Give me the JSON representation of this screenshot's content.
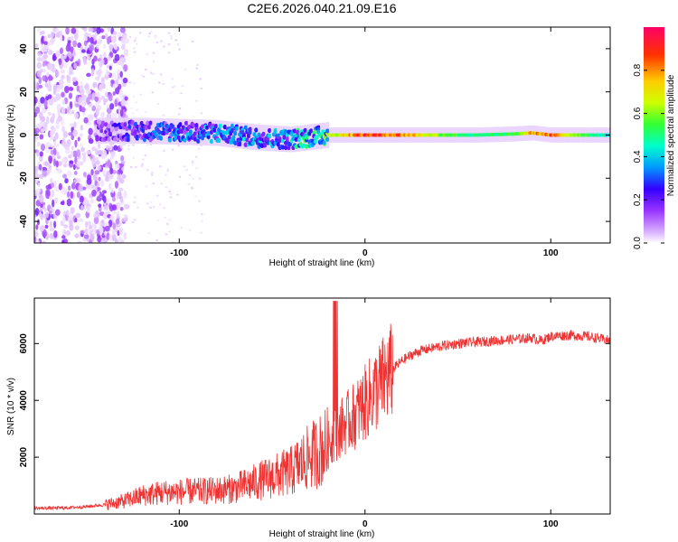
{
  "page_title": "C2E6.2026.040.21.09.E16",
  "chart_data": [
    {
      "type": "heatmap",
      "title": "C2E6.2026.040.21.09.E16",
      "xlabel": "Height of straight line (km)",
      "ylabel": "Frequency (Hz)",
      "xlim": [
        -178,
        132
      ],
      "ylim": [
        -50,
        50
      ],
      "x_ticks": [
        -100,
        0,
        100
      ],
      "y_ticks": [
        -40,
        -20,
        0,
        20,
        40
      ],
      "colorbar": {
        "label": "Normalized spectral amplitude",
        "range": [
          0,
          1
        ],
        "ticks": [
          0.0,
          0.2,
          0.4,
          0.6,
          0.8
        ],
        "colormap": [
          "#ffffff",
          "#d9b3ff",
          "#9933ff",
          "#3300ff",
          "#0099ff",
          "#00ffcc",
          "#33ff33",
          "#ccff00",
          "#ffcc00",
          "#ff3300",
          "#ff0066"
        ]
      },
      "ridge": [
        {
          "height": -140,
          "frequency": 2,
          "amplitude": 0.25
        },
        {
          "height": -120,
          "frequency": 2,
          "amplitude": 0.35
        },
        {
          "height": -100,
          "frequency": 1.5,
          "amplitude": 0.4
        },
        {
          "height": -80,
          "frequency": 1,
          "amplitude": 0.45
        },
        {
          "height": -60,
          "frequency": -1,
          "amplitude": 0.45
        },
        {
          "height": -40,
          "frequency": -2,
          "amplitude": 0.5
        },
        {
          "height": -20,
          "frequency": 0,
          "amplitude": 0.7
        },
        {
          "height": 0,
          "frequency": 0,
          "amplitude": 0.95
        },
        {
          "height": 20,
          "frequency": 0,
          "amplitude": 0.9
        },
        {
          "height": 40,
          "frequency": 0,
          "amplitude": 0.7
        },
        {
          "height": 60,
          "frequency": 0,
          "amplitude": 0.55
        },
        {
          "height": 80,
          "frequency": 0.5,
          "amplitude": 0.6
        },
        {
          "height": 90,
          "frequency": 1,
          "amplitude": 0.85
        },
        {
          "height": 100,
          "frequency": 0,
          "amplitude": 0.9
        },
        {
          "height": 110,
          "frequency": 0,
          "amplitude": 0.75
        },
        {
          "height": 130,
          "frequency": 0,
          "amplitude": 0.5
        }
      ]
    },
    {
      "type": "line",
      "xlabel": "Height of straight line (km)",
      "ylabel": "SNR (10 * v/v)",
      "xlim": [
        -178,
        132
      ],
      "ylim": [
        0,
        7600
      ],
      "x_ticks": [
        -100,
        0,
        100
      ],
      "y_ticks": [
        2000,
        4000,
        6000
      ],
      "series": [
        {
          "name": "SNR",
          "color": "#ee3333",
          "x": [
            -178,
            -160,
            -150,
            -140,
            -130,
            -120,
            -110,
            -100,
            -90,
            -80,
            -70,
            -60,
            -50,
            -40,
            -30,
            -25,
            -20,
            -15,
            -12,
            -10,
            -5,
            0,
            5,
            10,
            15,
            20,
            25,
            30,
            40,
            50,
            60,
            70,
            80,
            90,
            95,
            100,
            110,
            120,
            132
          ],
          "y": [
            200,
            220,
            260,
            330,
            450,
            650,
            750,
            780,
            800,
            830,
            900,
            1100,
            1300,
            1500,
            2000,
            2200,
            2400,
            2900,
            3100,
            3200,
            3500,
            3900,
            4300,
            4700,
            5100,
            5400,
            5600,
            5750,
            5900,
            6000,
            6050,
            6100,
            6150,
            6200,
            6100,
            6250,
            6300,
            6250,
            6100
          ]
        }
      ]
    }
  ]
}
